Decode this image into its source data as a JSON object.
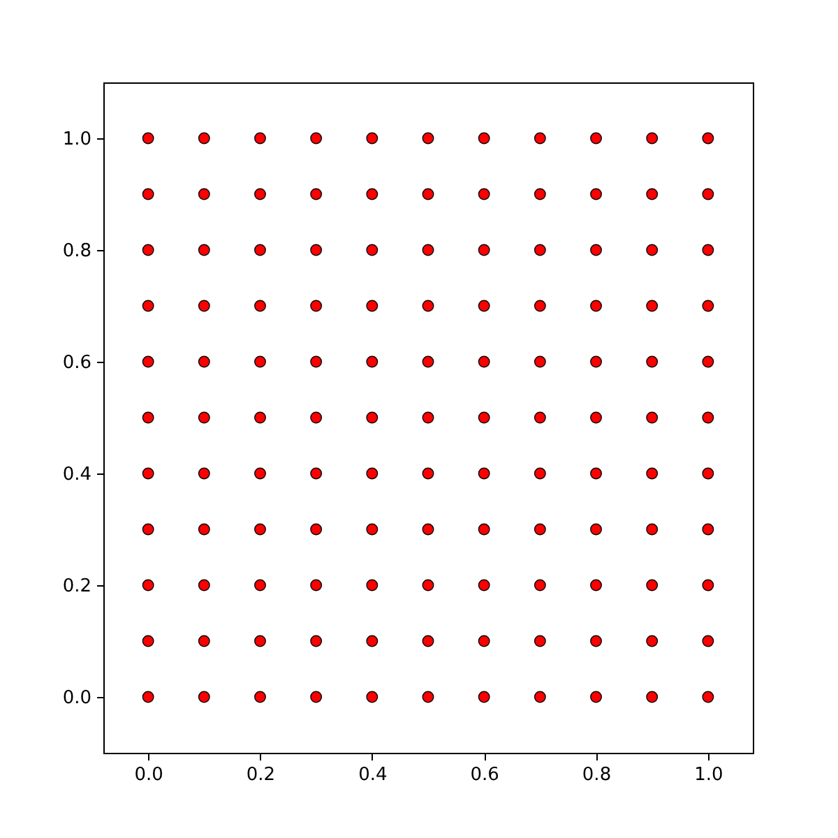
{
  "chart_data": {
    "type": "scatter",
    "marker": "circle",
    "grid": false,
    "xlim": [
      -0.08,
      1.08
    ],
    "ylim": [
      -0.1,
      1.1
    ],
    "xticks": [
      {
        "value": 0,
        "label": "0.0"
      },
      {
        "value": 0.2,
        "label": "0.2"
      },
      {
        "value": 0.4,
        "label": "0.4"
      },
      {
        "value": 0.6,
        "label": "0.6"
      },
      {
        "value": 0.8,
        "label": "0.8"
      },
      {
        "value": 1,
        "label": "1.0"
      }
    ],
    "yticks": [
      {
        "value": 0,
        "label": "0.0"
      },
      {
        "value": 0.2,
        "label": "0.2"
      },
      {
        "value": 0.4,
        "label": "0.4"
      },
      {
        "value": 0.6,
        "label": "0.6"
      },
      {
        "value": 0.8,
        "label": "0.8"
      },
      {
        "value": 1,
        "label": "1.0"
      }
    ],
    "series": [
      {
        "color": "#ff0000",
        "x": [
          0,
          0,
          0,
          0,
          0,
          0,
          0,
          0,
          0,
          0,
          0,
          0.1,
          0.1,
          0.1,
          0.1,
          0.1,
          0.1,
          0.1,
          0.1,
          0.1,
          0.1,
          0.1,
          0.2,
          0.2,
          0.2,
          0.2,
          0.2,
          0.2,
          0.2,
          0.2,
          0.2,
          0.2,
          0.2,
          0.3,
          0.3,
          0.3,
          0.3,
          0.3,
          0.3,
          0.3,
          0.3,
          0.3,
          0.3,
          0.3,
          0.4,
          0.4,
          0.4,
          0.4,
          0.4,
          0.4,
          0.4,
          0.4,
          0.4,
          0.4,
          0.4,
          0.5,
          0.5,
          0.5,
          0.5,
          0.5,
          0.5,
          0.5,
          0.5,
          0.5,
          0.5,
          0.5,
          0.6,
          0.6,
          0.6,
          0.6,
          0.6,
          0.6,
          0.6,
          0.6,
          0.6,
          0.6,
          0.6,
          0.7,
          0.7,
          0.7,
          0.7,
          0.7,
          0.7,
          0.7,
          0.7,
          0.7,
          0.7,
          0.7,
          0.8,
          0.8,
          0.8,
          0.8,
          0.8,
          0.8,
          0.8,
          0.8,
          0.8,
          0.8,
          0.8,
          0.9,
          0.9,
          0.9,
          0.9,
          0.9,
          0.9,
          0.9,
          0.9,
          0.9,
          0.9,
          0.9,
          1,
          1,
          1,
          1,
          1,
          1,
          1,
          1,
          1,
          1,
          1
        ],
        "values": [
          0,
          0.1,
          0.2,
          0.3,
          0.4,
          0.5,
          0.6,
          0.7,
          0.8,
          0.9,
          1,
          0,
          0.1,
          0.2,
          0.3,
          0.4,
          0.5,
          0.6,
          0.7,
          0.8,
          0.9,
          1,
          0,
          0.1,
          0.2,
          0.3,
          0.4,
          0.5,
          0.6,
          0.7,
          0.8,
          0.9,
          1,
          0,
          0.1,
          0.2,
          0.3,
          0.4,
          0.5,
          0.6,
          0.7,
          0.8,
          0.9,
          1,
          0,
          0.1,
          0.2,
          0.3,
          0.4,
          0.5,
          0.6,
          0.7,
          0.8,
          0.9,
          1,
          0,
          0.1,
          0.2,
          0.3,
          0.4,
          0.5,
          0.6,
          0.7,
          0.8,
          0.9,
          1,
          0,
          0.1,
          0.2,
          0.3,
          0.4,
          0.5,
          0.6,
          0.7,
          0.8,
          0.9,
          1,
          0,
          0.1,
          0.2,
          0.3,
          0.4,
          0.5,
          0.6,
          0.7,
          0.8,
          0.9,
          1,
          0,
          0.1,
          0.2,
          0.3,
          0.4,
          0.5,
          0.6,
          0.7,
          0.8,
          0.9,
          1,
          0,
          0.1,
          0.2,
          0.3,
          0.4,
          0.5,
          0.6,
          0.7,
          0.8,
          0.9,
          1,
          0,
          0.1,
          0.2,
          0.3,
          0.4,
          0.5,
          0.6,
          0.7,
          0.8,
          0.9,
          1
        ]
      }
    ]
  }
}
